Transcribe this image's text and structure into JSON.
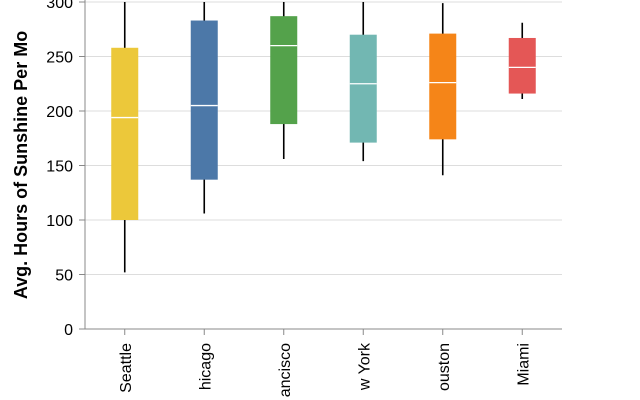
{
  "chart_data": {
    "type": "boxplot",
    "ylabel": "Avg. Hours of Sunshine Per Mo",
    "xlabel": "",
    "ylim": [
      0,
      300
    ],
    "yticks": [
      0,
      50,
      100,
      150,
      200,
      250,
      300
    ],
    "grid": true,
    "categories": [
      "Seattle",
      "hicago",
      "ancisco",
      "w York",
      "ouston",
      "Miami"
    ],
    "series": [
      {
        "category": "Seattle",
        "whisker_low": 52,
        "q1": 100,
        "median": 194,
        "q3": 258,
        "whisker_high": 300,
        "color": "#ecc83a"
      },
      {
        "category": "hicago",
        "whisker_low": 106,
        "q1": 137,
        "median": 205,
        "q3": 283,
        "whisker_high": 300,
        "color": "#4c78a8"
      },
      {
        "category": "ancisco",
        "whisker_low": 156,
        "q1": 188,
        "median": 260,
        "q3": 287,
        "whisker_high": 300,
        "color": "#54a24b"
      },
      {
        "category": "w York",
        "whisker_low": 154,
        "q1": 171,
        "median": 225,
        "q3": 270,
        "whisker_high": 300,
        "color": "#72b7b2"
      },
      {
        "category": "ouston",
        "whisker_low": 141,
        "q1": 174,
        "median": 226,
        "q3": 271,
        "whisker_high": 299,
        "color": "#f58518"
      },
      {
        "category": "Miami",
        "whisker_low": 211,
        "q1": 216,
        "median": 240,
        "q3": 267,
        "whisker_high": 281,
        "color": "#e45756"
      }
    ]
  }
}
